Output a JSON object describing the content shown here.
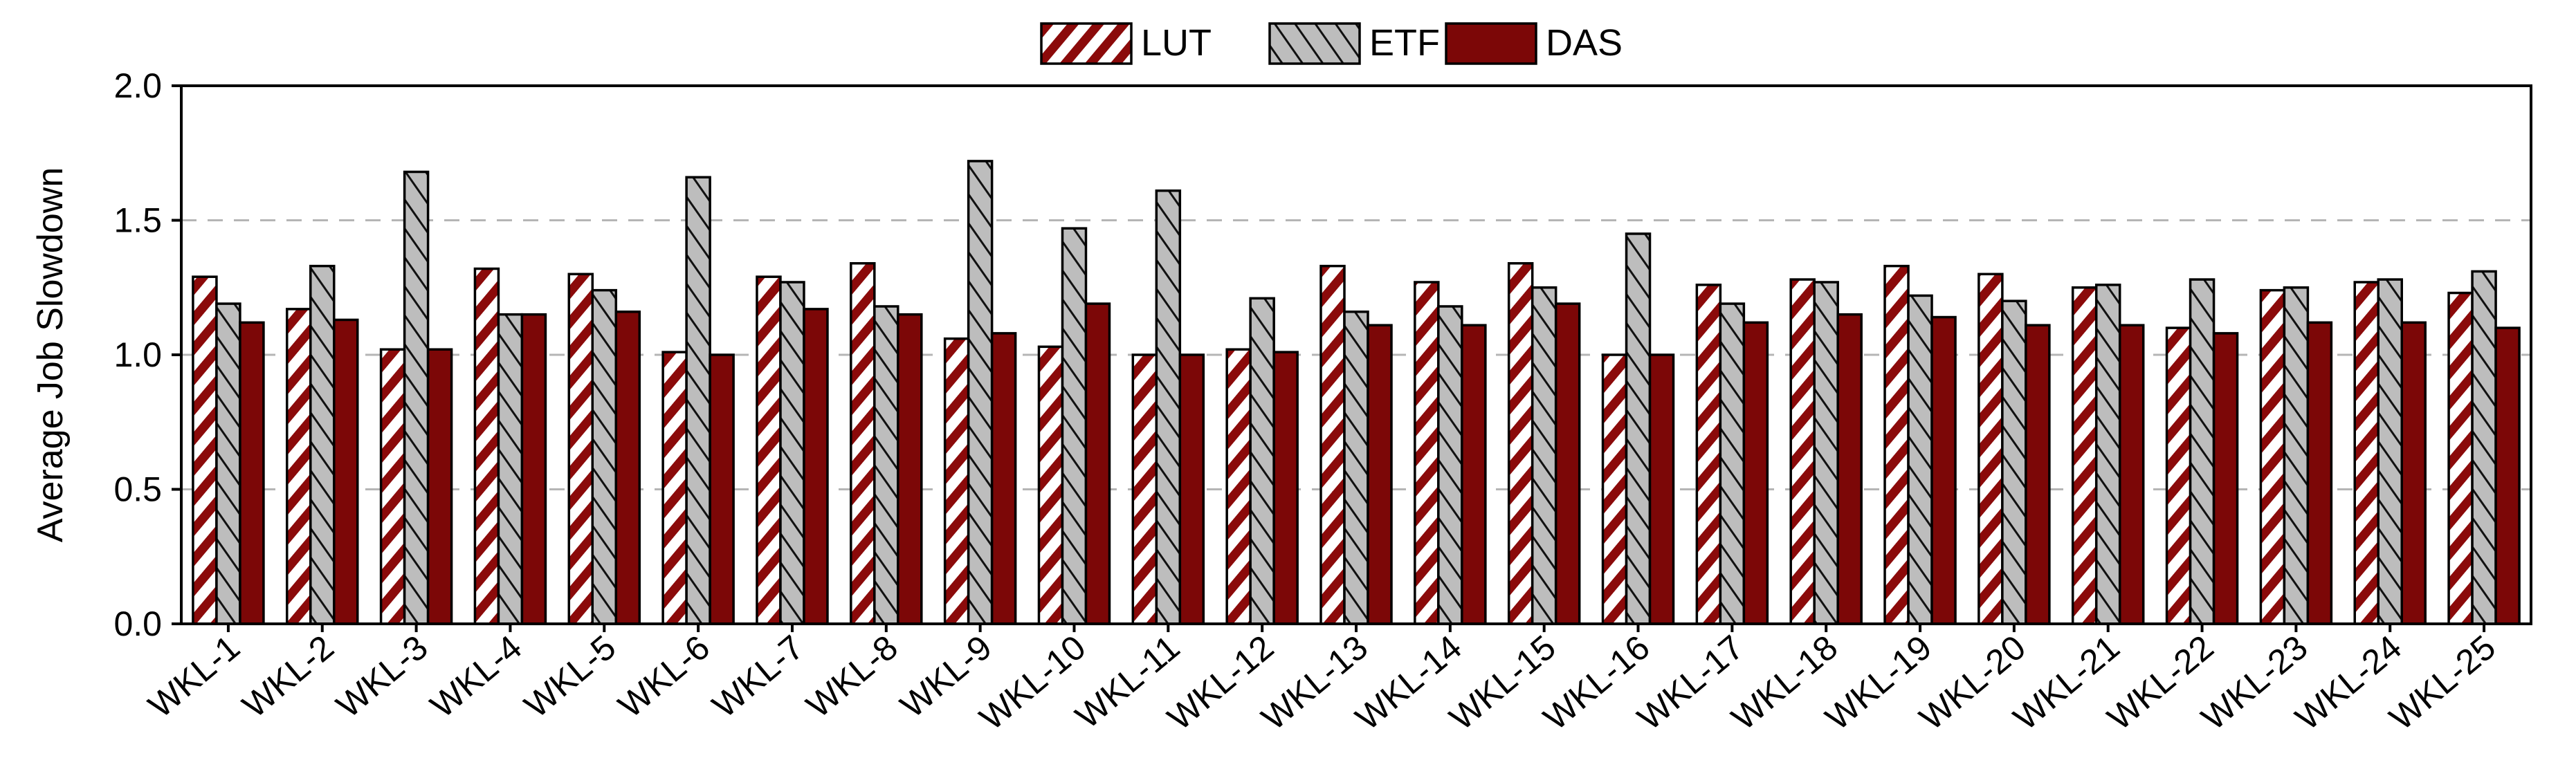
{
  "chart_data": {
    "type": "bar",
    "ylabel": "Average Job Slowdown",
    "ylim": [
      0,
      2.0
    ],
    "yticks": [
      "0.0",
      "0.5",
      "1.0",
      "1.5",
      "2.0"
    ],
    "grid": "horizontal dashed at 0.5, 1.0, 1.5",
    "legend_position": "top-center",
    "categories": [
      "WKL-1",
      "WKL-2",
      "WKL-3",
      "WKL-4",
      "WKL-5",
      "WKL-6",
      "WKL-7",
      "WKL-8",
      "WKL-9",
      "WKL-10",
      "WKL-11",
      "WKL-12",
      "WKL-13",
      "WKL-14",
      "WKL-15",
      "WKL-16",
      "WKL-17",
      "WKL-18",
      "WKL-19",
      "WKL-20",
      "WKL-21",
      "WKL-22",
      "WKL-23",
      "WKL-24",
      "WKL-25"
    ],
    "series": [
      {
        "name": "LUT",
        "pattern": "red-diagonal-stripes",
        "color": "#8b0a0a",
        "values": [
          1.29,
          1.17,
          1.02,
          1.32,
          1.3,
          1.01,
          1.29,
          1.34,
          1.06,
          1.03,
          1.0,
          1.02,
          1.33,
          1.27,
          1.34,
          1.0,
          1.26,
          1.28,
          1.33,
          1.3,
          1.25,
          1.1,
          1.24,
          1.27,
          1.23
        ]
      },
      {
        "name": "ETF",
        "pattern": "gray-back-diagonal-lines",
        "color": "#bdbdbd",
        "values": [
          1.19,
          1.33,
          1.68,
          1.15,
          1.24,
          1.66,
          1.27,
          1.18,
          1.72,
          1.47,
          1.61,
          1.21,
          1.16,
          1.18,
          1.25,
          1.45,
          1.19,
          1.27,
          1.22,
          1.2,
          1.26,
          1.28,
          1.25,
          1.28,
          1.31
        ]
      },
      {
        "name": "DAS",
        "pattern": "solid",
        "color": "#7c0707",
        "values": [
          1.12,
          1.13,
          1.02,
          1.15,
          1.16,
          1.0,
          1.17,
          1.15,
          1.08,
          1.19,
          1.0,
          1.01,
          1.11,
          1.11,
          1.19,
          1.0,
          1.12,
          1.15,
          1.14,
          1.11,
          1.11,
          1.08,
          1.12,
          1.12,
          1.1
        ]
      }
    ]
  }
}
